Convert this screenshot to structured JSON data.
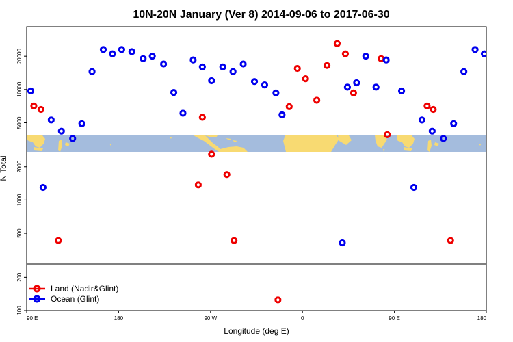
{
  "chart_data": {
    "type": "scatter",
    "title": "10N-20N January (Ver 8)   2014-09-06 to 2017-06-30",
    "xlabel": "Longitude (deg E)",
    "ylabel": "N Total",
    "x_ticks": [
      {
        "value": 90,
        "label": "90 E"
      },
      {
        "value": 180,
        "label": "180"
      },
      {
        "value": 270,
        "label": "90 W"
      },
      {
        "value": 360,
        "label": "0"
      },
      {
        "value": 450,
        "label": "90 E"
      },
      {
        "value": 540,
        "label": "180"
      }
    ],
    "xlim": [
      90,
      540
    ],
    "y_scale": "log",
    "ylim": [
      100,
      37000
    ],
    "y_ticks": [
      {
        "value": 100,
        "label": "100"
      },
      {
        "value": 200,
        "label": "200"
      },
      {
        "value": 500,
        "label": "500"
      },
      {
        "value": 1000,
        "label": "1000"
      },
      {
        "value": 2000,
        "label": "2000"
      },
      {
        "value": 5000,
        "label": "5000"
      },
      {
        "value": 10000,
        "label": "10000"
      },
      {
        "value": 20000,
        "label": "20000"
      }
    ],
    "legend_position": "bottom-left",
    "series": [
      {
        "name": "Land (Nadir&Glint)",
        "color": "#ee0000",
        "points": [
          [
            97,
            7100
          ],
          [
            104,
            6600
          ],
          [
            121,
            430
          ],
          [
            258,
            1370
          ],
          [
            262,
            5600
          ],
          [
            271,
            2600
          ],
          [
            286,
            1700
          ],
          [
            293,
            430
          ],
          [
            336,
            125
          ],
          [
            347,
            7000
          ],
          [
            355,
            15500
          ],
          [
            363,
            12500
          ],
          [
            374,
            8000
          ],
          [
            384,
            16500
          ],
          [
            394,
            26000
          ],
          [
            402,
            21000
          ],
          [
            410,
            9300
          ],
          [
            437,
            19000
          ],
          [
            443,
            3900
          ],
          [
            482,
            7100
          ],
          [
            488,
            6600
          ],
          [
            505,
            430
          ]
        ]
      },
      {
        "name": "Ocean (Glint)",
        "color": "#0000ee",
        "points": [
          [
            94,
            9700
          ],
          [
            106,
            1300
          ],
          [
            114,
            5300
          ],
          [
            124,
            4200
          ],
          [
            135,
            3600
          ],
          [
            144,
            4900
          ],
          [
            154,
            14500
          ],
          [
            165,
            23000
          ],
          [
            174,
            21000
          ],
          [
            183,
            23000
          ],
          [
            193,
            22000
          ],
          [
            204,
            19000
          ],
          [
            213,
            20000
          ],
          [
            224,
            17000
          ],
          [
            234,
            9400
          ],
          [
            243,
            6100
          ],
          [
            253,
            18500
          ],
          [
            262,
            16000
          ],
          [
            271,
            12000
          ],
          [
            282,
            16000
          ],
          [
            292,
            14500
          ],
          [
            302,
            17000
          ],
          [
            313,
            11800
          ],
          [
            323,
            11000
          ],
          [
            334,
            9300
          ],
          [
            340,
            5900
          ],
          [
            399,
            410
          ],
          [
            404,
            10500
          ],
          [
            413,
            11500
          ],
          [
            422,
            20000
          ],
          [
            432,
            10500
          ],
          [
            442,
            18500
          ],
          [
            457,
            9700
          ],
          [
            469,
            1300
          ],
          [
            477,
            5300
          ],
          [
            487,
            4200
          ],
          [
            498,
            3600
          ],
          [
            508,
            4900
          ],
          [
            518,
            14500
          ],
          [
            529,
            23000
          ],
          [
            538,
            21000
          ]
        ]
      }
    ]
  }
}
